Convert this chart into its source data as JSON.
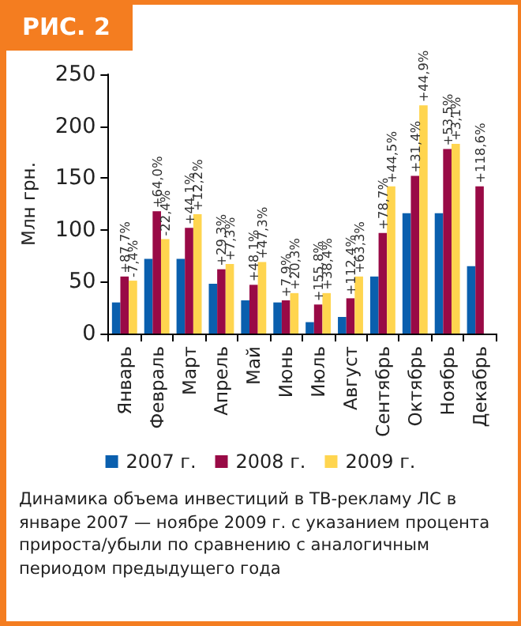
{
  "chart_data": {
    "type": "bar",
    "title": "РИС. 2",
    "ylabel": "Млн грн.",
    "categories": [
      "Январь",
      "Февраль",
      "Март",
      "Апрель",
      "Май",
      "Июнь",
      "Июль",
      "Август",
      "Сентябрь",
      "Октябрь",
      "Ноябрь",
      "Декабрь"
    ],
    "series": [
      {
        "name": "2007 г.",
        "color": "#0a5fae",
        "values": [
          30,
          72,
          72,
          48,
          32,
          30,
          11,
          16,
          55,
          116,
          116,
          65
        ]
      },
      {
        "name": "2008 г.",
        "color": "#990a46",
        "values": [
          55,
          118,
          102,
          62,
          47,
          32,
          28,
          34,
          97,
          152,
          178,
          142
        ]
      },
      {
        "name": "2009 г.",
        "color": "#ffd54f",
        "values": [
          51,
          91,
          115,
          67,
          69,
          39,
          39,
          55,
          142,
          220,
          183,
          null
        ]
      }
    ],
    "ylim": [
      0,
      250
    ],
    "yticks": [
      0,
      50,
      100,
      150,
      200,
      250
    ],
    "grid": false,
    "legend": "bottom",
    "annotations": [
      {
        "text": "+87,7%",
        "x": "Январь",
        "y": 55
      },
      {
        "text": "-7,4%",
        "x": "Январь",
        "y": 51
      },
      {
        "text": "+64,0%",
        "x": "Февраль",
        "y": 118
      },
      {
        "text": "-22,4%",
        "x": "Февраль",
        "y": 91
      },
      {
        "text": "+44,1%",
        "x": "Март",
        "y": 102
      },
      {
        "text": "+12,2%",
        "x": "Март",
        "y": 115
      },
      {
        "text": "+29,3%",
        "x": "Апрель",
        "y": 62
      },
      {
        "text": "+7,3%",
        "x": "Апрель",
        "y": 67
      },
      {
        "text": "+48,1%",
        "x": "Май",
        "y": 47
      },
      {
        "text": "+47,3%",
        "x": "Май",
        "y": 69
      },
      {
        "text": "+7,9%",
        "x": "Июнь",
        "y": 32
      },
      {
        "text": "+20,3%",
        "x": "Июнь",
        "y": 39
      },
      {
        "text": "+155,8%",
        "x": "Июль",
        "y": 28
      },
      {
        "text": "+38,4%",
        "x": "Июль",
        "y": 39
      },
      {
        "text": "+112,4%",
        "x": "Август",
        "y": 34
      },
      {
        "text": "+63,3%",
        "x": "Август",
        "y": 55
      },
      {
        "text": "+78,7%",
        "x": "Сентябрь",
        "y": 97
      },
      {
        "text": "+44,5%",
        "x": "Сентябрь",
        "y": 142
      },
      {
        "text": "+31,4%",
        "x": "Октябрь",
        "y": 152
      },
      {
        "text": "+44,9%",
        "x": "Октябрь",
        "y": 220
      },
      {
        "text": "+53,5%",
        "x": "Ноябрь",
        "y": 178
      },
      {
        "text": "+3,1%",
        "x": "Ноябрь",
        "y": 183
      },
      {
        "text": "+118,6%",
        "x": "Декабрь",
        "y": 142
      },
      "Динамика объема инвестиций в ТВ-рекламу ЛС в январе 2007 — ноябре 2009 г. с указанием процента прироста/убыли по сравнению с аналогичным периодом предыдущего года"
    ]
  }
}
